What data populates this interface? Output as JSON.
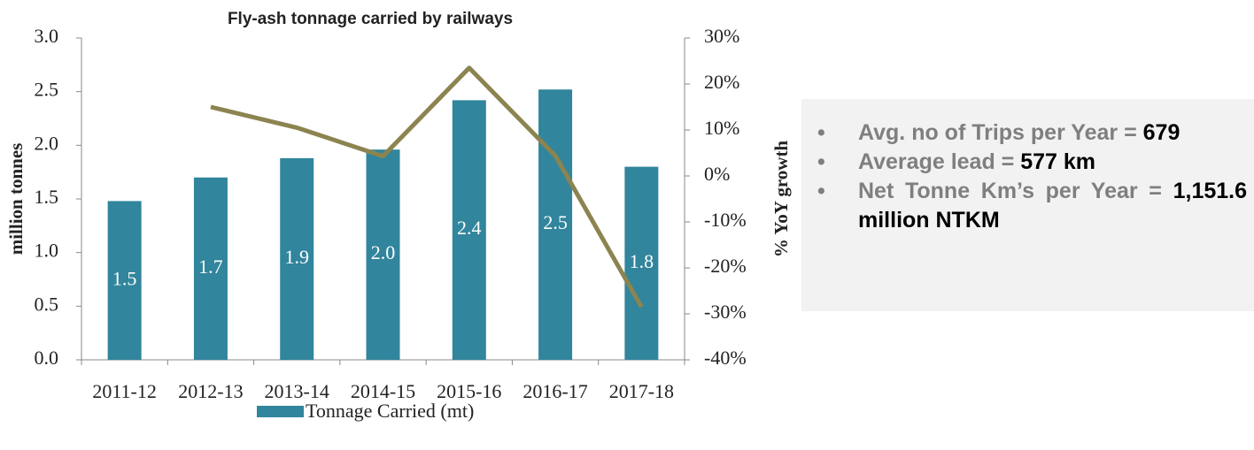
{
  "chart_data": {
    "type": "bar",
    "title": "Fly-ash tonnage carried by railways",
    "ylabel": "million tonnes",
    "y2label": "% YoY growth",
    "categories": [
      "2011-12",
      "2012-13",
      "2013-14",
      "2014-15",
      "2015-16",
      "2016-17",
      "2017-18"
    ],
    "series": [
      {
        "name": "Tonnage Carried (mt)",
        "color": "#31859c",
        "values": [
          1.48,
          1.7,
          1.88,
          1.96,
          2.42,
          2.52,
          1.8
        ],
        "value_labels": [
          "1.5",
          "1.7",
          "1.9",
          "2.0",
          "2.4",
          "2.5",
          "1.8"
        ]
      },
      {
        "type": "line",
        "color": "#8c8450",
        "axis": "y2",
        "values": [
          null,
          15,
          10.5,
          4.3,
          23.5,
          4.4,
          -28.5
        ]
      }
    ],
    "ylim": [
      0,
      3
    ],
    "yticks": [
      {
        "value": 0,
        "label": "0.0"
      },
      0.5,
      {
        "value": 1,
        "label": "1.0"
      },
      1.5,
      {
        "value": 2,
        "label": "2.0"
      },
      2.5,
      {
        "value": 3,
        "label": "3.0"
      }
    ],
    "y2lim": [
      -40,
      30
    ],
    "y2ticks": [
      {
        "value": -40,
        "label": "-40%"
      },
      {
        "value": -30,
        "label": "-30%"
      },
      {
        "value": -20,
        "label": "-20%"
      },
      {
        "value": -10,
        "label": "-10%"
      },
      {
        "value": 0,
        "label": "0%"
      },
      {
        "value": 10,
        "label": "10%"
      },
      {
        "value": 20,
        "label": "20%"
      },
      {
        "value": 30,
        "label": "30%"
      }
    ],
    "legend": "bottom"
  },
  "panel": {
    "items": [
      {
        "text": "Avg. no of Trips per Year =",
        "value": "679"
      },
      {
        "text": "Average lead =",
        "value": "577 km"
      },
      {
        "text": "Net Tonne Km’s per Year =",
        "value": "1,151.6 million NTKM"
      }
    ]
  }
}
